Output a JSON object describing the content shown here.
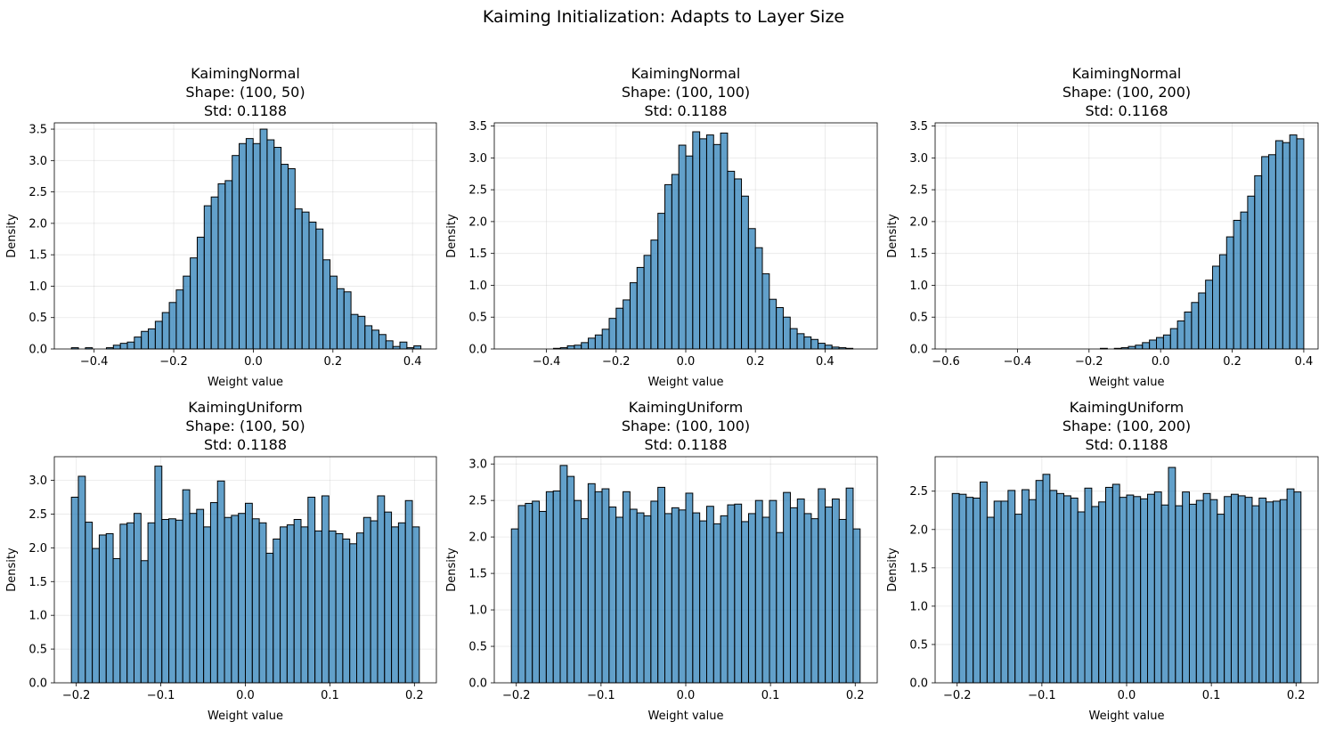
{
  "figure": {
    "suptitle": "Kaiming Initialization: Adapts to Layer Size"
  },
  "chart_data": [
    {
      "type": "bar",
      "title_lines": [
        "KaimingNormal",
        "Shape: (100, 50)",
        "Std: 0.1188"
      ],
      "xlabel": "Weight value",
      "ylabel": "Density",
      "xlim": [
        -0.5,
        0.46
      ],
      "ylim": [
        0,
        3.6
      ],
      "xticks": [
        -0.4,
        -0.2,
        0.0,
        0.2,
        0.4
      ],
      "xtick_labels": [
        "−0.4",
        "−0.2",
        "0.0",
        "0.2",
        "0.4"
      ],
      "yticks": [
        0,
        0.5,
        1.0,
        1.5,
        2.0,
        2.5,
        3.0,
        3.5
      ],
      "ytick_labels": [
        "0.0",
        "0.5",
        "1.0",
        "1.5",
        "2.0",
        "2.5",
        "3.0",
        "3.5"
      ],
      "grid": true,
      "bins_start": -0.457,
      "bin_width": 0.01756,
      "values": [
        0.02,
        0.0,
        0.02,
        0.0,
        0.0,
        0.02,
        0.06,
        0.09,
        0.11,
        0.19,
        0.28,
        0.32,
        0.44,
        0.58,
        0.74,
        0.94,
        1.16,
        1.45,
        1.78,
        2.28,
        2.42,
        2.63,
        2.68,
        3.08,
        3.27,
        3.35,
        3.27,
        3.5,
        3.33,
        3.21,
        2.94,
        2.87,
        2.23,
        2.18,
        2.02,
        1.91,
        1.42,
        1.16,
        0.96,
        0.91,
        0.55,
        0.52,
        0.37,
        0.3,
        0.23,
        0.13,
        0.04,
        0.11,
        0.02,
        0.05
      ]
    },
    {
      "type": "bar",
      "title_lines": [
        "KaimingNormal",
        "Shape: (100, 100)",
        "Std: 0.1188"
      ],
      "xlabel": "Weight value",
      "ylabel": "Density",
      "xlim": [
        -0.55,
        0.55
      ],
      "ylim": [
        0,
        3.55
      ],
      "xticks": [
        -0.4,
        -0.2,
        0.0,
        0.2,
        0.4
      ],
      "xtick_labels": [
        "−0.4",
        "−0.2",
        "0.0",
        "0.2",
        "0.4"
      ],
      "yticks": [
        0,
        0.5,
        1.0,
        1.5,
        2.0,
        2.5,
        3.0,
        3.5
      ],
      "ytick_labels": [
        "0.0",
        "0.5",
        "1.0",
        "1.5",
        "2.0",
        "2.5",
        "3.0",
        "3.5"
      ],
      "grid": true,
      "bins_start": -0.5,
      "bin_width": 0.02,
      "values": [
        0.0,
        0.0,
        0.0,
        0.0,
        0.0,
        0.0,
        0.01,
        0.02,
        0.05,
        0.06,
        0.1,
        0.17,
        0.22,
        0.31,
        0.48,
        0.64,
        0.77,
        1.04,
        1.28,
        1.47,
        1.71,
        2.13,
        2.58,
        2.74,
        3.2,
        3.03,
        3.41,
        3.3,
        3.36,
        3.21,
        3.39,
        2.79,
        2.67,
        2.4,
        1.89,
        1.59,
        1.18,
        0.78,
        0.65,
        0.5,
        0.32,
        0.24,
        0.19,
        0.15,
        0.09,
        0.06,
        0.03,
        0.02,
        0.01,
        0.0
      ]
    },
    {
      "type": "bar",
      "title_lines": [
        "KaimingNormal",
        "Shape: (100, 200)",
        "Std: 0.1168"
      ],
      "xlabel": "Weight value",
      "ylabel": "Density",
      "xlim": [
        -0.63,
        0.44
      ],
      "ylim": [
        0,
        3.55
      ],
      "xticks": [
        -0.6,
        -0.4,
        -0.2,
        0.0,
        0.2,
        0.4
      ],
      "xtick_labels": [
        "−0.6",
        "−0.4",
        "−0.2",
        "0.0",
        "0.2",
        "0.4"
      ],
      "yticks": [
        0,
        0.5,
        1.0,
        1.5,
        2.0,
        2.5,
        3.0,
        3.5
      ],
      "ytick_labels": [
        "0.0",
        "0.5",
        "1.0",
        "1.5",
        "2.0",
        "2.5",
        "3.0",
        "3.5"
      ],
      "grid": true,
      "bins_start": -0.58,
      "bin_width": 0.0196,
      "values": [
        0.0,
        0.0,
        0.0,
        0.0,
        0.0,
        0.0,
        0.0,
        0.0,
        0.0,
        0.0,
        0.0,
        0.0,
        0.0,
        0.0,
        0.0,
        0.0,
        0.0,
        0.0,
        0.0,
        0.0,
        0.0,
        0.01,
        0.0,
        0.01,
        0.02,
        0.04,
        0.06,
        0.1,
        0.14,
        0.18,
        0.22,
        0.32,
        0.44,
        0.58,
        0.73,
        0.88,
        1.08,
        1.3,
        1.48,
        1.76,
        2.02,
        2.15,
        2.4,
        2.72,
        3.02,
        3.05,
        3.27,
        3.24,
        3.36,
        3.3
      ]
    },
    {
      "type": "bar",
      "title_lines": [
        "KaimingUniform",
        "Shape: (100, 50)",
        "Std: 0.1188"
      ],
      "xlabel": "Weight value",
      "ylabel": "Density",
      "xlim": [
        -0.226,
        0.226
      ],
      "ylim": [
        0,
        3.35
      ],
      "xticks": [
        -0.2,
        -0.1,
        0.0,
        0.1,
        0.2
      ],
      "xtick_labels": [
        "−0.2",
        "−0.1",
        "0.0",
        "0.1",
        "0.2"
      ],
      "yticks": [
        0,
        0.5,
        1.0,
        1.5,
        2.0,
        2.5,
        3.0
      ],
      "ytick_labels": [
        "0.0",
        "0.5",
        "1.0",
        "1.5",
        "2.0",
        "2.5",
        "3.0"
      ],
      "grid": true,
      "bins_start": -0.2058,
      "bin_width": 0.008232,
      "values": [
        2.75,
        3.06,
        2.38,
        1.99,
        2.19,
        2.21,
        1.84,
        2.35,
        2.37,
        2.51,
        1.81,
        2.37,
        3.21,
        2.42,
        2.43,
        2.41,
        2.86,
        2.51,
        2.57,
        2.31,
        2.67,
        2.99,
        2.45,
        2.48,
        2.51,
        2.66,
        2.43,
        2.37,
        1.92,
        2.13,
        2.31,
        2.34,
        2.42,
        2.31,
        2.75,
        2.25,
        2.77,
        2.25,
        2.21,
        2.13,
        2.06,
        2.22,
        2.45,
        2.4,
        2.77,
        2.53,
        2.31,
        2.37,
        2.7,
        2.31
      ]
    },
    {
      "type": "bar",
      "title_lines": [
        "KaimingUniform",
        "Shape: (100, 100)",
        "Std: 0.1188"
      ],
      "xlabel": "Weight value",
      "ylabel": "Density",
      "xlim": [
        -0.226,
        0.226
      ],
      "ylim": [
        0,
        3.1
      ],
      "xticks": [
        -0.2,
        -0.1,
        0.0,
        0.1,
        0.2
      ],
      "xtick_labels": [
        "−0.2",
        "−0.1",
        "0.0",
        "0.1",
        "0.2"
      ],
      "yticks": [
        0,
        0.5,
        1.0,
        1.5,
        2.0,
        2.5,
        3.0
      ],
      "ytick_labels": [
        "0.0",
        "0.5",
        "1.0",
        "1.5",
        "2.0",
        "2.5",
        "3.0"
      ],
      "grid": true,
      "bins_start": -0.2058,
      "bin_width": 0.008232,
      "values": [
        2.11,
        2.43,
        2.46,
        2.49,
        2.35,
        2.62,
        2.63,
        2.98,
        2.83,
        2.5,
        2.25,
        2.73,
        2.62,
        2.66,
        2.41,
        2.27,
        2.62,
        2.38,
        2.33,
        2.29,
        2.49,
        2.68,
        2.32,
        2.4,
        2.37,
        2.6,
        2.33,
        2.22,
        2.42,
        2.18,
        2.29,
        2.44,
        2.45,
        2.21,
        2.32,
        2.5,
        2.27,
        2.5,
        2.06,
        2.61,
        2.4,
        2.52,
        2.32,
        2.25,
        2.66,
        2.41,
        2.52,
        2.24,
        2.67,
        2.11
      ]
    },
    {
      "type": "bar",
      "title_lines": [
        "KaimingUniform",
        "Shape: (100, 200)",
        "Std: 0.1188"
      ],
      "xlabel": "Weight value",
      "ylabel": "Density",
      "xlim": [
        -0.226,
        0.226
      ],
      "ylim": [
        0,
        2.95
      ],
      "xticks": [
        -0.2,
        -0.1,
        0.0,
        0.1,
        0.2
      ],
      "xtick_labels": [
        "−0.2",
        "−0.1",
        "0.0",
        "0.1",
        "0.2"
      ],
      "yticks": [
        0,
        0.5,
        1.0,
        1.5,
        2.0,
        2.5
      ],
      "ytick_labels": [
        "0.0",
        "0.5",
        "1.0",
        "1.5",
        "2.0",
        "2.5"
      ],
      "grid": true,
      "bins_start": -0.2058,
      "bin_width": 0.008232,
      "values": [
        2.47,
        2.46,
        2.42,
        2.41,
        2.62,
        2.16,
        2.37,
        2.37,
        2.51,
        2.2,
        2.52,
        2.39,
        2.64,
        2.72,
        2.51,
        2.47,
        2.44,
        2.41,
        2.23,
        2.54,
        2.3,
        2.36,
        2.55,
        2.59,
        2.42,
        2.45,
        2.43,
        2.4,
        2.46,
        2.49,
        2.32,
        2.81,
        2.31,
        2.49,
        2.33,
        2.38,
        2.47,
        2.39,
        2.2,
        2.43,
        2.46,
        2.44,
        2.42,
        2.31,
        2.41,
        2.36,
        2.37,
        2.39,
        2.53,
        2.49
      ]
    }
  ]
}
